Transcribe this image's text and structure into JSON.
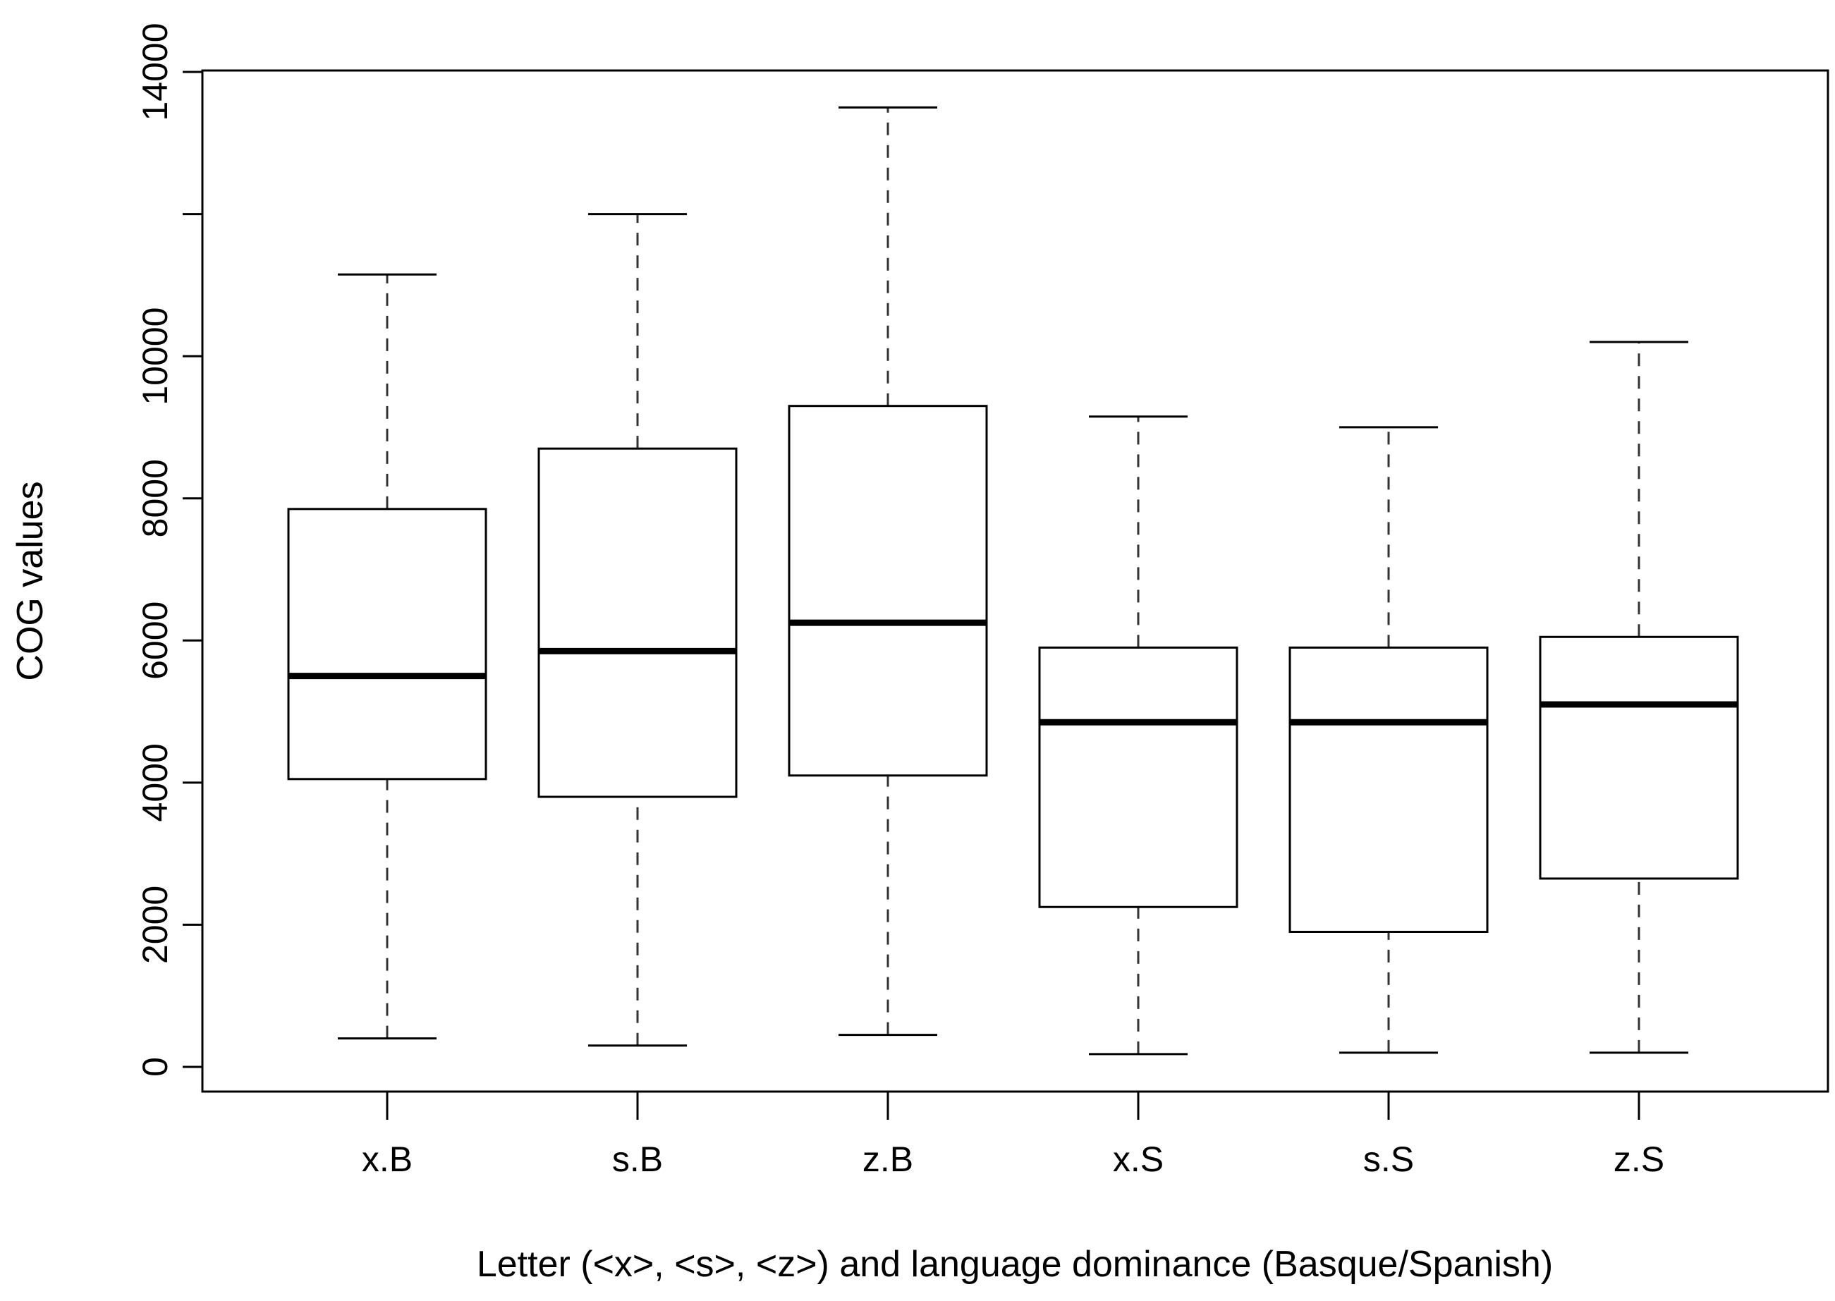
{
  "chart_data": {
    "type": "boxplot",
    "title": "",
    "xlabel": "Letter (<x>, <s>, <z>) and language dominance (Basque/Spanish)",
    "ylabel": "COG values",
    "ylim": [
      -350,
      14000
    ],
    "yticks": [
      0,
      2000,
      4000,
      6000,
      8000,
      10000,
      14000
    ],
    "ytick_labels": [
      "0",
      "2000",
      "4000",
      "6000",
      "8000",
      "10000",
      "14000"
    ],
    "yticks_unlabeled": [
      12000
    ],
    "categories": [
      "x.B",
      "s.B",
      "z.B",
      "x.S",
      "s.S",
      "z.S"
    ],
    "boxes": [
      {
        "label": "x.B",
        "whisker_low": 400,
        "q1": 4050,
        "median": 5500,
        "q3": 7850,
        "whisker_high": 11150
      },
      {
        "label": "s.B",
        "whisker_low": 300,
        "q1": 3800,
        "median": 5850,
        "q3": 8700,
        "whisker_high": 12000
      },
      {
        "label": "z.B",
        "whisker_low": 450,
        "q1": 4100,
        "median": 6250,
        "q3": 9300,
        "whisker_high": 13500
      },
      {
        "label": "x.S",
        "whisker_low": 180,
        "q1": 2250,
        "median": 4850,
        "q3": 5900,
        "whisker_high": 9150
      },
      {
        "label": "s.S",
        "whisker_low": 200,
        "q1": 1900,
        "median": 4850,
        "q3": 5900,
        "whisker_high": 9000
      },
      {
        "label": "z.S",
        "whisker_low": 200,
        "q1": 2650,
        "median": 5100,
        "q3": 6050,
        "whisker_high": 10200
      }
    ],
    "grid": false,
    "legend": "none"
  }
}
